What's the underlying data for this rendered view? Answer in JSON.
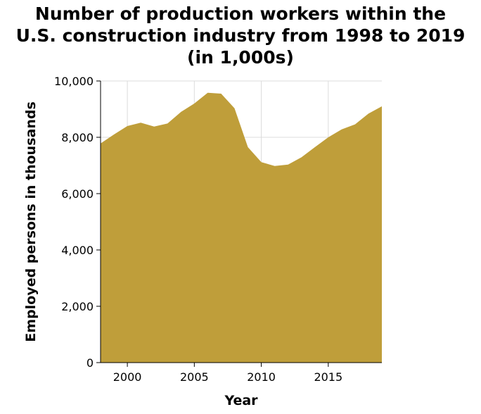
{
  "chart_data": {
    "type": "area",
    "title_lines": [
      "Number of production workers within the",
      "U.S. construction industry from 1998 to 2019",
      "(in 1,000s)"
    ],
    "xlabel": "Year",
    "ylabel": "Employed persons in thousands",
    "xlim": [
      1998,
      2019
    ],
    "ylim": [
      0,
      10000
    ],
    "x_ticks": [
      2000,
      2005,
      2010,
      2015
    ],
    "x_tick_labels": [
      "2000",
      "2005",
      "2010",
      "2015"
    ],
    "y_ticks": [
      0,
      2000,
      4000,
      6000,
      8000,
      10000
    ],
    "y_tick_labels": [
      "0",
      "2,000",
      "4,000",
      "6,000",
      "8,000",
      "10,000"
    ],
    "grid": true,
    "color": "#bf9e3a",
    "series": [
      {
        "x": [
          1998,
          1999,
          2000,
          2001,
          2002,
          2003,
          2004,
          2005,
          2006,
          2007,
          2008,
          2009,
          2010,
          2011,
          2012,
          2013,
          2014,
          2015,
          2016,
          2017,
          2018,
          2019
        ],
        "values": [
          7780,
          8100,
          8400,
          8520,
          8380,
          8490,
          8900,
          9200,
          9580,
          9550,
          9030,
          7650,
          7120,
          6980,
          7030,
          7290,
          7650,
          8000,
          8280,
          8460,
          8840,
          9100
        ]
      }
    ]
  }
}
